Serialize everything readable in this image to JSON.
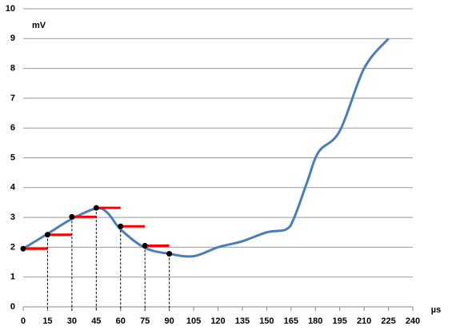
{
  "chart_data": {
    "type": "line",
    "y_label": "mV",
    "x_label": "µs",
    "xlim": [
      0,
      240
    ],
    "xticks": [
      0,
      15,
      30,
      45,
      60,
      75,
      90,
      105,
      120,
      135,
      150,
      165,
      180,
      195,
      210,
      225,
      240
    ],
    "ylim": [
      0,
      10
    ],
    "yticks": [
      0,
      1,
      2,
      3,
      4,
      5,
      6,
      7,
      8,
      9,
      10
    ],
    "grid": true,
    "series": [
      {
        "color": "#4a7ebb",
        "x": [
          0,
          15,
          30,
          45,
          52,
          60,
          75,
          90,
          105,
          120,
          135,
          150,
          162,
          167,
          175,
          182,
          195,
          210,
          225
        ],
        "values": [
          1.95,
          2.45,
          2.95,
          3.3,
          3.15,
          2.6,
          1.98,
          1.78,
          1.7,
          2.0,
          2.2,
          2.5,
          2.6,
          3.0,
          4.2,
          5.2,
          5.9,
          8.0,
          9.0
        ]
      }
    ],
    "samples": {
      "color": "#000000",
      "hold_color": "#ff0000",
      "x": [
        0,
        15,
        30,
        45,
        60,
        75,
        90
      ],
      "values": [
        1.95,
        2.42,
        3.02,
        3.32,
        2.7,
        2.05,
        1.78
      ]
    }
  }
}
